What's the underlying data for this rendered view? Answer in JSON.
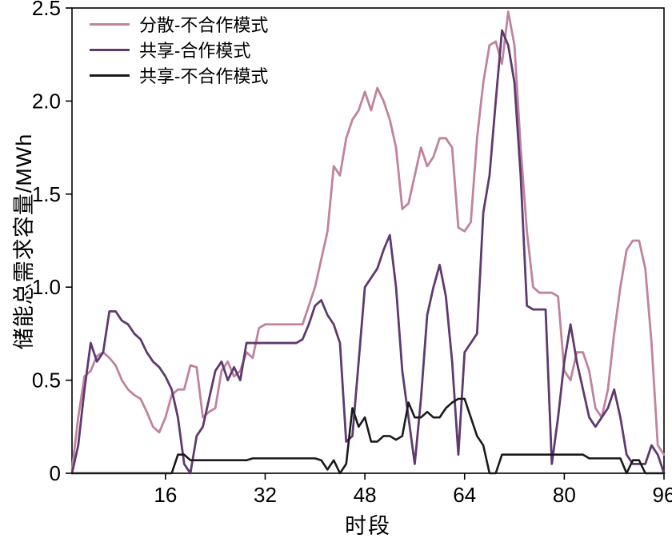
{
  "chart_data": {
    "type": "line",
    "title": "",
    "xlabel": "时段",
    "ylabel": "储能总需求容量/MWh",
    "xlim": [
      1,
      96
    ],
    "ylim": [
      0,
      2.5
    ],
    "x_ticks": [
      16,
      32,
      48,
      64,
      80,
      96
    ],
    "y_ticks": [
      0,
      0.5,
      1.0,
      1.5,
      2.0,
      2.5
    ],
    "grid": false,
    "legend_position": "top-left",
    "series": [
      {
        "name": "分散-不合作模式",
        "color": "#c0839e",
        "width": 2.8,
        "values": [
          0.02,
          0.3,
          0.52,
          0.55,
          0.63,
          0.65,
          0.62,
          0.58,
          0.5,
          0.45,
          0.42,
          0.4,
          0.33,
          0.25,
          0.22,
          0.3,
          0.42,
          0.45,
          0.45,
          0.58,
          0.57,
          0.3,
          0.33,
          0.35,
          0.55,
          0.6,
          0.52,
          0.55,
          0.65,
          0.62,
          0.78,
          0.8,
          0.8,
          0.8,
          0.8,
          0.8,
          0.8,
          0.8,
          0.9,
          1.0,
          1.15,
          1.3,
          1.65,
          1.6,
          1.8,
          1.9,
          1.95,
          2.05,
          1.95,
          2.07,
          2.0,
          1.9,
          1.75,
          1.42,
          1.45,
          1.6,
          1.75,
          1.65,
          1.7,
          1.8,
          1.8,
          1.75,
          1.32,
          1.3,
          1.35,
          1.8,
          2.1,
          2.3,
          2.32,
          2.2,
          2.48,
          2.3,
          1.75,
          1.3,
          1.0,
          0.97,
          0.97,
          0.97,
          0.95,
          0.55,
          0.5,
          0.65,
          0.65,
          0.55,
          0.35,
          0.3,
          0.45,
          0.75,
          1.0,
          1.2,
          1.25,
          1.25,
          1.1,
          0.7,
          0.15,
          0.1
        ]
      },
      {
        "name": "共享-合作模式",
        "color": "#5e3a6e",
        "width": 2.8,
        "values": [
          0.0,
          0.15,
          0.45,
          0.7,
          0.6,
          0.65,
          0.87,
          0.87,
          0.82,
          0.8,
          0.75,
          0.72,
          0.65,
          0.6,
          0.57,
          0.52,
          0.45,
          0.3,
          0.05,
          0.0,
          0.2,
          0.25,
          0.4,
          0.55,
          0.6,
          0.5,
          0.57,
          0.5,
          0.7,
          0.7,
          0.7,
          0.7,
          0.7,
          0.7,
          0.7,
          0.7,
          0.7,
          0.72,
          0.8,
          0.9,
          0.93,
          0.85,
          0.8,
          0.7,
          0.17,
          0.2,
          0.6,
          1.0,
          1.05,
          1.1,
          1.2,
          1.28,
          1.0,
          0.55,
          0.3,
          0.05,
          0.4,
          0.85,
          1.0,
          1.12,
          0.95,
          0.6,
          0.1,
          0.65,
          0.7,
          0.75,
          1.4,
          1.6,
          2.0,
          2.38,
          2.3,
          2.1,
          1.6,
          0.9,
          0.88,
          0.88,
          0.88,
          0.05,
          0.3,
          0.6,
          0.8,
          0.6,
          0.45,
          0.3,
          0.25,
          0.3,
          0.35,
          0.45,
          0.3,
          0.1,
          0.05,
          0.05,
          0.05,
          0.15,
          0.1,
          0.0
        ]
      },
      {
        "name": "共享-不合作模式",
        "color": "#1a1a1a",
        "width": 2.6,
        "values": [
          0,
          0,
          0,
          0,
          0,
          0,
          0,
          0,
          0,
          0,
          0,
          0,
          0,
          0,
          0,
          0,
          0,
          0.1,
          0.1,
          0.07,
          0.07,
          0.07,
          0.07,
          0.07,
          0.07,
          0.07,
          0.07,
          0.07,
          0.07,
          0.08,
          0.08,
          0.08,
          0.08,
          0.08,
          0.08,
          0.08,
          0.08,
          0.08,
          0.08,
          0.08,
          0.07,
          0.02,
          0.07,
          0.0,
          0.05,
          0.35,
          0.25,
          0.3,
          0.17,
          0.17,
          0.2,
          0.2,
          0.18,
          0.2,
          0.38,
          0.3,
          0.3,
          0.33,
          0.3,
          0.3,
          0.35,
          0.38,
          0.4,
          0.4,
          0.3,
          0.2,
          0.15,
          0.0,
          0.0,
          0.1,
          0.1,
          0.1,
          0.1,
          0.1,
          0.1,
          0.1,
          0.1,
          0.1,
          0.1,
          0.1,
          0.1,
          0.1,
          0.1,
          0.08,
          0.08,
          0.08,
          0.08,
          0.08,
          0.08,
          0.0,
          0.07,
          0.07,
          0.0,
          0.0,
          0.0,
          0.0
        ]
      }
    ]
  }
}
